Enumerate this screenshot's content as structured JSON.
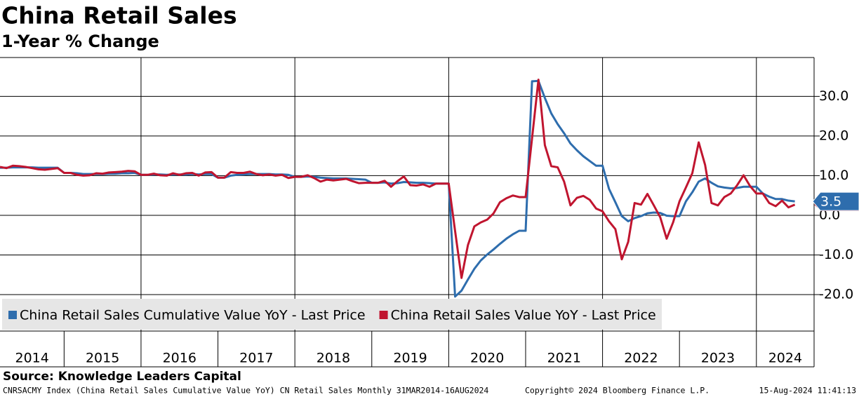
{
  "chart_data": {
    "type": "line",
    "title": "China Retail Sales",
    "subtitle": "1-Year % Change",
    "x": [
      "2014-03",
      "2014-04",
      "2014-05",
      "2014-06",
      "2014-07",
      "2014-08",
      "2014-09",
      "2014-10",
      "2014-11",
      "2014-12",
      "2015-01",
      "2015-02",
      "2015-03",
      "2015-04",
      "2015-05",
      "2015-06",
      "2015-07",
      "2015-08",
      "2015-09",
      "2015-10",
      "2015-11",
      "2015-12",
      "2016-01",
      "2016-02",
      "2016-03",
      "2016-04",
      "2016-05",
      "2016-06",
      "2016-07",
      "2016-08",
      "2016-09",
      "2016-10",
      "2016-11",
      "2016-12",
      "2017-01",
      "2017-02",
      "2017-03",
      "2017-04",
      "2017-05",
      "2017-06",
      "2017-07",
      "2017-08",
      "2017-09",
      "2017-10",
      "2017-11",
      "2017-12",
      "2018-01",
      "2018-02",
      "2018-03",
      "2018-04",
      "2018-05",
      "2018-06",
      "2018-07",
      "2018-08",
      "2018-09",
      "2018-10",
      "2018-11",
      "2018-12",
      "2019-01",
      "2019-02",
      "2019-03",
      "2019-04",
      "2019-05",
      "2019-06",
      "2019-07",
      "2019-08",
      "2019-09",
      "2019-10",
      "2019-11",
      "2019-12",
      "2020-01",
      "2020-02",
      "2020-03",
      "2020-04",
      "2020-05",
      "2020-06",
      "2020-07",
      "2020-08",
      "2020-09",
      "2020-10",
      "2020-11",
      "2020-12",
      "2021-01",
      "2021-02",
      "2021-03",
      "2021-04",
      "2021-05",
      "2021-06",
      "2021-07",
      "2021-08",
      "2021-09",
      "2021-10",
      "2021-11",
      "2021-12",
      "2022-01",
      "2022-02",
      "2022-03",
      "2022-04",
      "2022-05",
      "2022-06",
      "2022-07",
      "2022-08",
      "2022-09",
      "2022-10",
      "2022-11",
      "2022-12",
      "2023-01",
      "2023-02",
      "2023-03",
      "2023-04",
      "2023-05",
      "2023-06",
      "2023-07",
      "2023-08",
      "2023-09",
      "2023-10",
      "2023-11",
      "2023-12",
      "2024-01",
      "2024-02",
      "2024-03",
      "2024-04",
      "2024-05",
      "2024-06",
      "2024-07"
    ],
    "series": [
      {
        "name": "China Retail Sales Cumulative Value YoY - Last Price",
        "color": "#2e6dad",
        "values": [
          12.0,
          12.0,
          12.1,
          12.1,
          12.1,
          12.1,
          12.0,
          12.0,
          12.0,
          12.0,
          10.7,
          10.7,
          10.6,
          10.4,
          10.4,
          10.4,
          10.4,
          10.5,
          10.5,
          10.6,
          10.6,
          10.7,
          10.2,
          10.2,
          10.3,
          10.3,
          10.2,
          10.3,
          10.3,
          10.3,
          10.4,
          10.3,
          10.4,
          10.4,
          9.5,
          9.5,
          10.0,
          10.2,
          10.3,
          10.4,
          10.4,
          10.4,
          10.4,
          10.3,
          10.3,
          10.2,
          9.7,
          9.7,
          9.8,
          9.7,
          9.5,
          9.4,
          9.3,
          9.3,
          9.3,
          9.2,
          9.1,
          9.0,
          8.2,
          8.2,
          8.3,
          8.0,
          8.1,
          8.4,
          8.3,
          8.2,
          8.2,
          8.1,
          8.0,
          8.0,
          8.0,
          -20.5,
          -19.0,
          -16.2,
          -13.5,
          -11.4,
          -9.9,
          -8.6,
          -7.2,
          -5.9,
          -4.8,
          -3.9,
          -3.9,
          33.8,
          33.9,
          29.6,
          25.7,
          23.0,
          20.7,
          18.1,
          16.4,
          14.9,
          13.7,
          12.5,
          12.5,
          6.7,
          3.3,
          -0.2,
          -1.5,
          -0.7,
          -0.2,
          0.5,
          0.7,
          0.6,
          -0.1,
          -0.2,
          -0.2,
          3.5,
          5.8,
          8.5,
          9.3,
          8.2,
          7.3,
          7.0,
          6.8,
          6.9,
          7.2,
          7.2,
          7.2,
          5.5,
          4.7,
          4.1,
          4.1,
          3.7,
          3.5
        ]
      },
      {
        "name": "China Retail Sales Value YoY - Last Price",
        "color": "#c0152f",
        "values": [
          12.2,
          11.9,
          12.5,
          12.4,
          12.2,
          11.9,
          11.6,
          11.5,
          11.7,
          11.9,
          10.7,
          10.7,
          10.2,
          10.0,
          10.1,
          10.6,
          10.5,
          10.8,
          10.9,
          11.0,
          11.2,
          11.1,
          10.2,
          10.2,
          10.5,
          10.1,
          10.0,
          10.6,
          10.2,
          10.6,
          10.7,
          10.0,
          10.8,
          10.9,
          9.5,
          9.5,
          10.9,
          10.7,
          10.7,
          11.0,
          10.4,
          10.1,
          10.3,
          10.0,
          10.2,
          9.4,
          9.7,
          9.7,
          10.1,
          9.4,
          8.5,
          9.0,
          8.8,
          9.0,
          9.2,
          8.6,
          8.1,
          8.2,
          8.2,
          8.2,
          8.7,
          7.2,
          8.6,
          9.8,
          7.6,
          7.5,
          7.8,
          7.2,
          8.0,
          8.0,
          8.0,
          -4.0,
          -15.8,
          -7.5,
          -2.8,
          -1.8,
          -1.1,
          0.5,
          3.3,
          4.3,
          5.0,
          4.6,
          4.6,
          19.4,
          34.2,
          17.7,
          12.4,
          12.1,
          8.5,
          2.5,
          4.4,
          4.9,
          3.9,
          1.7,
          1.0,
          -1.5,
          -3.5,
          -11.1,
          -6.7,
          3.1,
          2.7,
          5.4,
          2.5,
          -0.5,
          -5.9,
          -1.8,
          3.5,
          7.0,
          10.6,
          18.4,
          12.7,
          3.1,
          2.5,
          4.6,
          5.5,
          7.6,
          10.1,
          7.4,
          5.5,
          5.5,
          3.1,
          2.3,
          3.7,
          2.0,
          2.7
        ]
      }
    ],
    "xlim": [
      "2014-03",
      "2024-10"
    ],
    "xticks": [
      2014,
      2015,
      2016,
      2017,
      2018,
      2019,
      2020,
      2021,
      2022,
      2023,
      2024
    ],
    "xgrid": [
      2016,
      2018,
      2020,
      2022,
      2024
    ],
    "ylim": [
      -29.2,
      39.8
    ],
    "yticks": [
      {
        "value": -20,
        "label": "-20.0"
      },
      {
        "value": -10,
        "label": "-10.0"
      },
      {
        "value": 0,
        "label": "0.0"
      },
      {
        "value": 10,
        "label": "10.0"
      },
      {
        "value": 20,
        "label": "20.0"
      },
      {
        "value": 30,
        "label": "30.0"
      }
    ],
    "grid": true,
    "legend": "lower left",
    "source": "Source: Knowledge Leaders Capital",
    "footnote": "CNRSACMY Index (China Retail Sales Cumulative Value YoY) CN Retail Sales  Monthly 31MAR2014-16AUG2024",
    "copyright": "Copyright© 2024 Bloomberg Finance L.P.",
    "timestamp": "15-Aug-2024 11:41:13"
  }
}
